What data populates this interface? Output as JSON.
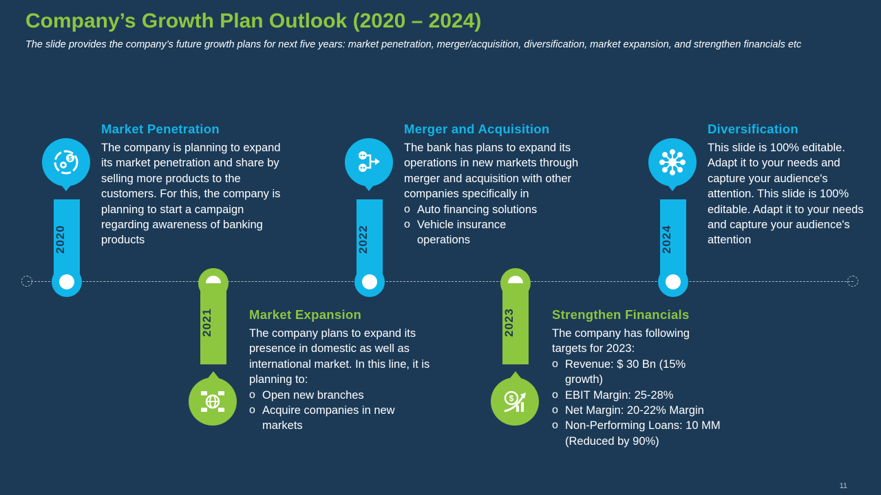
{
  "slide": {
    "title": "Company’s Growth Plan Outlook (2020 – 2024)",
    "subtitle": "The slide provides the company’s future growth  plans for next five years: market penetration, merger/acquisition, diversification, market expansion, and strengthen financials etc",
    "page_number": "11"
  },
  "colors": {
    "background": "#1c3a56",
    "blue": "#12b5e8",
    "green": "#8dc63f"
  },
  "milestones": [
    {
      "year": "2020",
      "icon": "dollar-gear-icon",
      "heading": "Market Penetration",
      "body": "The company is planning to expand its market penetration and share by selling more products to the customers. For this, the company is planning to start a campaign regarding awareness of banking products"
    },
    {
      "year": "2021",
      "icon": "global-network-icon",
      "heading": "Market Expansion",
      "body": "The company plans to expand its presence in domestic as well as international market. In this line, it is planning to:",
      "bullets": [
        "Open new branches",
        "Acquire companies in new markets"
      ]
    },
    {
      "year": "2022",
      "icon": "merge-flow-icon",
      "heading": "Merger and Acquisition",
      "body": "The bank has plans to expand its operations in new markets through merger and acquisition with other companies specifically in",
      "bullets": [
        "Auto financing solutions",
        "Vehicle insurance operations"
      ]
    },
    {
      "year": "2023",
      "icon": "dollar-growth-icon",
      "heading": "Strengthen Financials",
      "body": "The company has following targets for 2023:",
      "bullets": [
        "Revenue: $ 30 Bn (15% growth)",
        "EBIT Margin: 25-28%",
        "Net Margin: 20-22% Margin",
        "Non-Performing Loans: 10 MM (Reduced by 90%)"
      ]
    },
    {
      "year": "2024",
      "icon": "network-hub-icon",
      "heading": "Diversification",
      "body": "This slide is 100% editable. Adapt it to your needs and capture your audience's attention. This slide is 100% editable. Adapt it to your needs and capture your audience's attention"
    }
  ]
}
